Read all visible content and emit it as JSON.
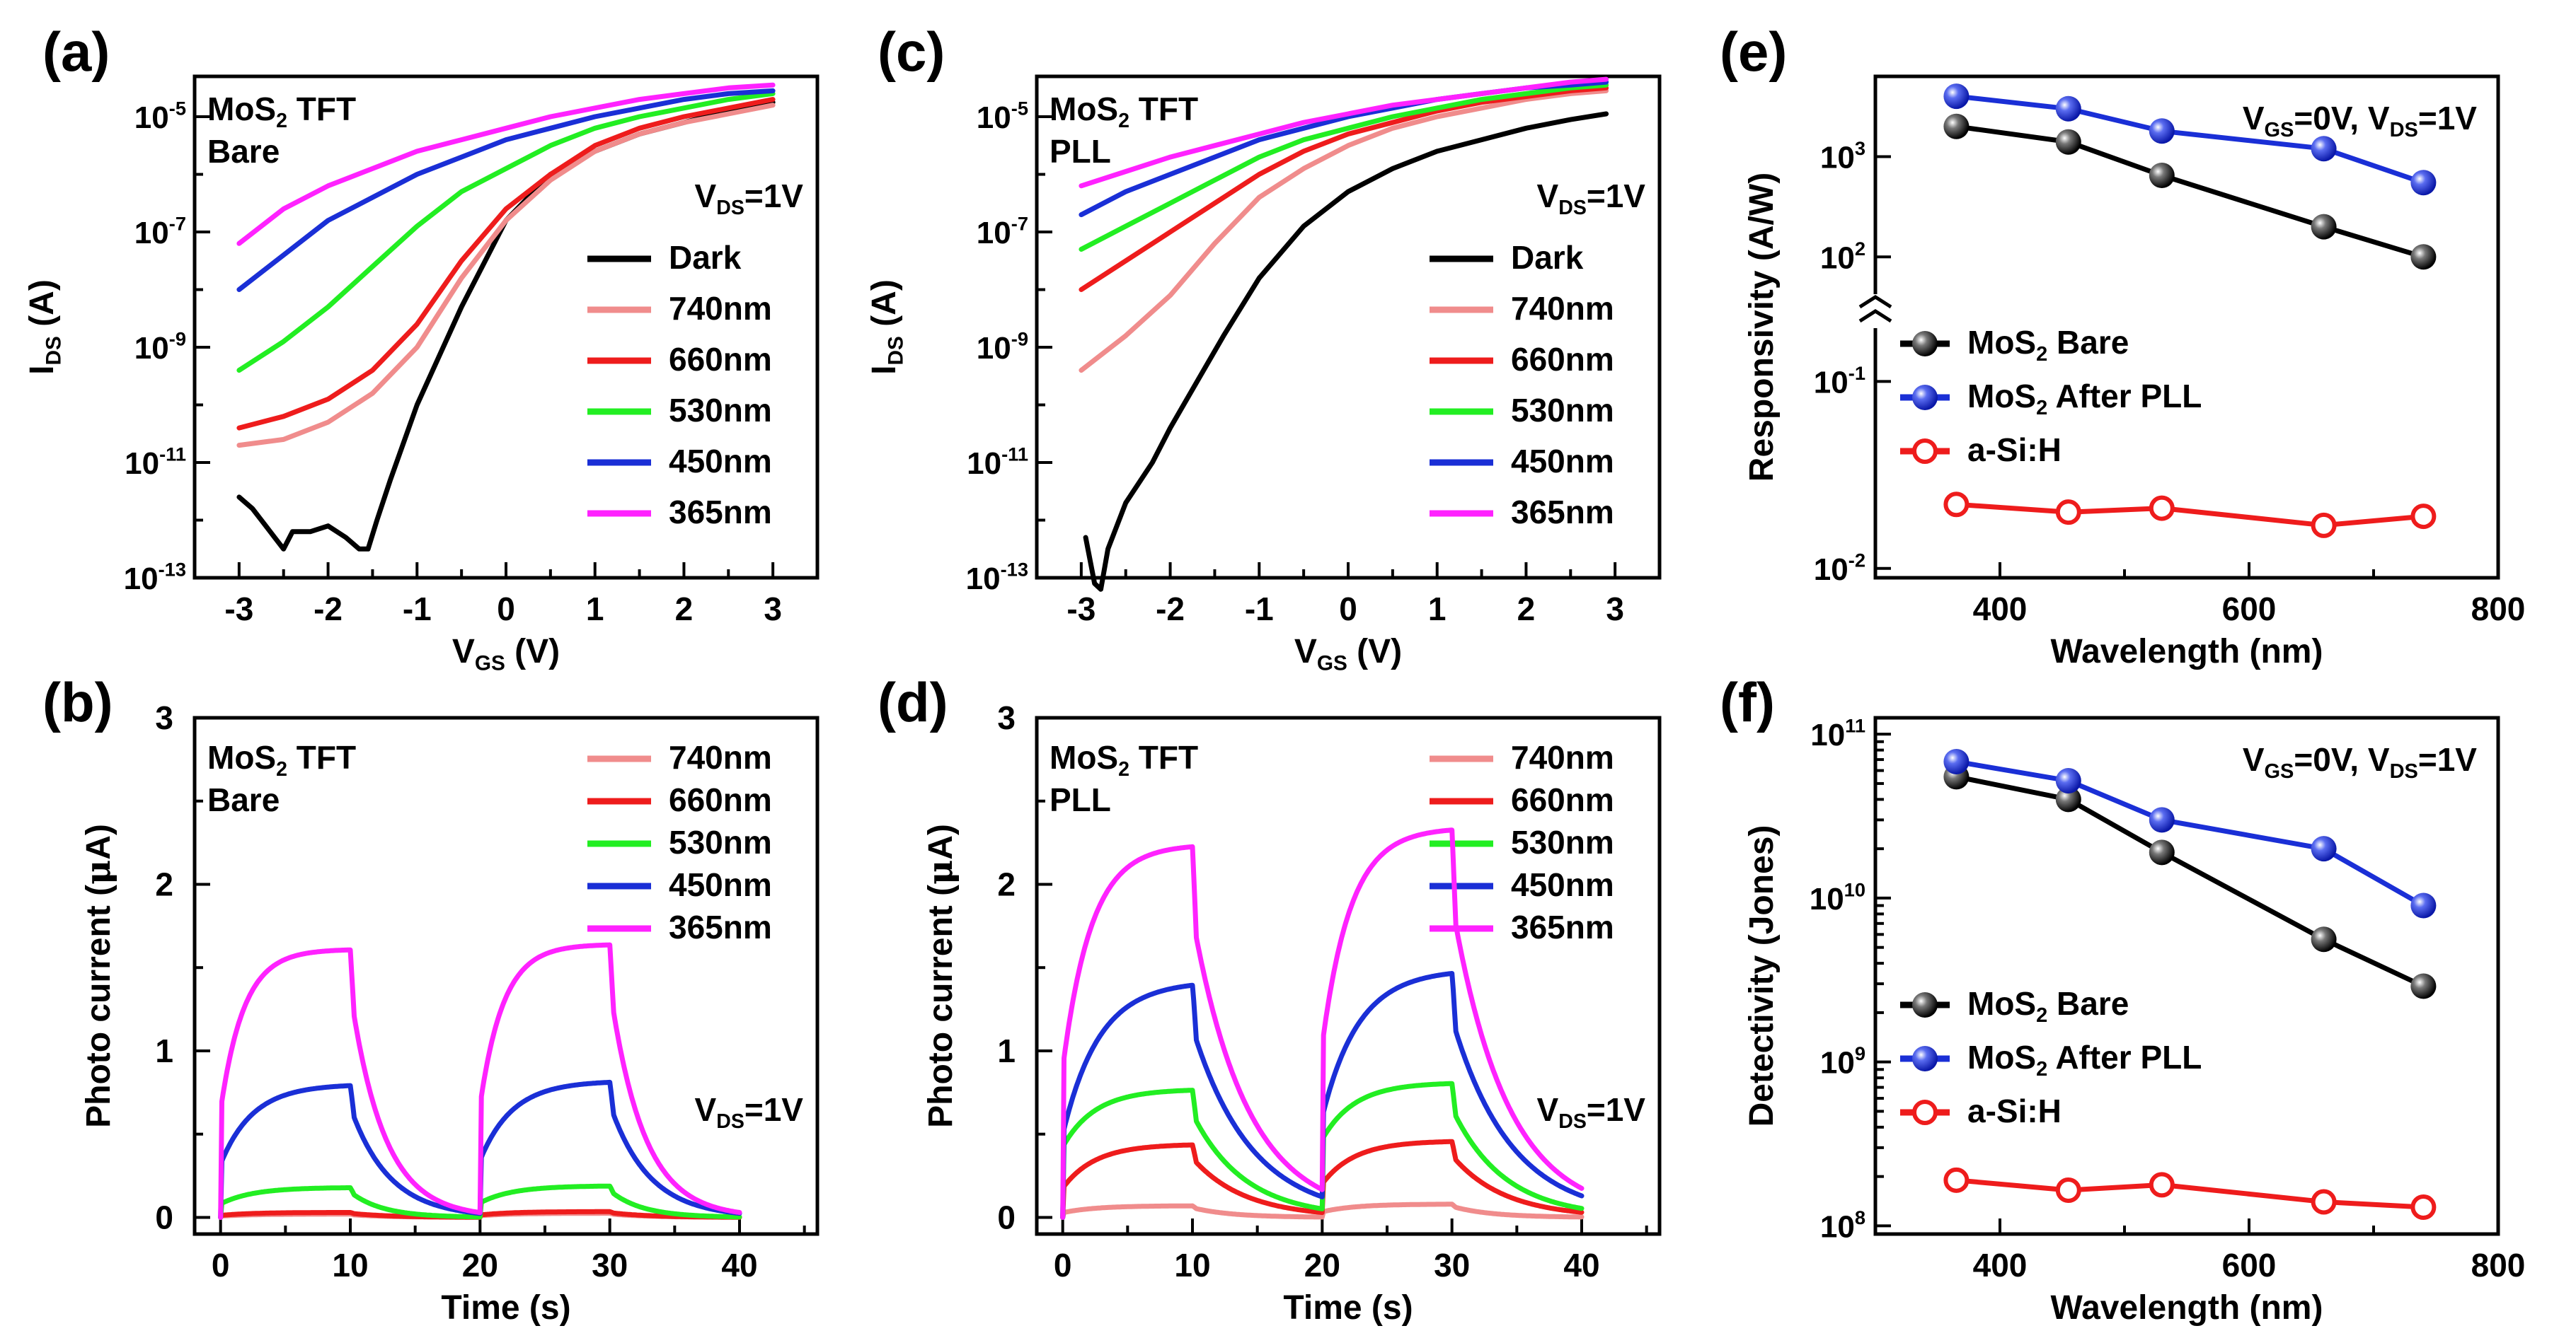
{
  "figure": {
    "colors": {
      "dark": "#000000",
      "nm740": "#f08c8c",
      "nm660": "#ee1c1c",
      "nm530": "#22ee22",
      "nm450": "#1a2fd6",
      "nm365": "#ff22ff",
      "asi": "#ee1c1c"
    }
  },
  "chart_data": [
    {
      "id": "a",
      "panel_label": "(a)",
      "type": "line",
      "yscale": "log",
      "title_line1": "MoS",
      "title_sub": "2",
      "title_rest": " TFT",
      "title_line2": "Bare",
      "condition_main": "V",
      "condition_sub": "DS",
      "condition_rest": "=1V",
      "xlabel": "V",
      "xlabel_sub": "GS",
      "xlabel_rest": " (V)",
      "ylabel": "I",
      "ylabel_sub": "DS",
      "ylabel_rest": " (A)",
      "xlim": [
        -3.5,
        3.5
      ],
      "ylim_exp": [
        -13,
        -4.3
      ],
      "xticks": [
        -3,
        -2,
        -1,
        0,
        1,
        2,
        3
      ],
      "xtick_labels": [
        "-3",
        "-2",
        "-1",
        "0",
        "1",
        "2",
        "3"
      ],
      "yticks_exp": [
        -13,
        -11,
        -9,
        -7,
        -5
      ],
      "ytick_base": "10",
      "ytick_exponents": [
        "-13",
        "-11",
        "-9",
        "-7",
        "-5"
      ],
      "legend_labels": [
        "Dark",
        "740nm",
        "660nm",
        "530nm",
        "450nm",
        "365nm"
      ],
      "series": [
        {
          "name": "Dark",
          "color_key": "dark",
          "x": [
            -3,
            -2.85,
            -2.75,
            -2.6,
            -2.5,
            -2.4,
            -2.2,
            -2.0,
            -1.8,
            -1.65,
            -1.55,
            -1.45,
            -1.3,
            -1.0,
            -0.5,
            0,
            0.5,
            1,
            1.5,
            2,
            2.5,
            3
          ],
          "y_exp": [
            -11.6,
            -11.8,
            -12.0,
            -12.3,
            -12.5,
            -12.2,
            -12.2,
            -12.1,
            -12.3,
            -12.5,
            -12.5,
            -12.0,
            -11.3,
            -10.0,
            -8.3,
            -6.8,
            -6.0,
            -5.6,
            -5.3,
            -5.1,
            -4.9,
            -4.75
          ]
        },
        {
          "name": "740nm",
          "color_key": "nm740",
          "x": [
            -3,
            -2.5,
            -2,
            -1.5,
            -1,
            -0.5,
            0,
            0.5,
            1,
            1.5,
            2,
            2.5,
            3
          ],
          "y_exp": [
            -10.7,
            -10.6,
            -10.3,
            -9.8,
            -9.0,
            -7.8,
            -6.8,
            -6.1,
            -5.6,
            -5.3,
            -5.1,
            -4.95,
            -4.8
          ]
        },
        {
          "name": "660nm",
          "color_key": "nm660",
          "x": [
            -3,
            -2.5,
            -2,
            -1.5,
            -1,
            -0.5,
            0,
            0.5,
            1,
            1.5,
            2,
            2.5,
            3
          ],
          "y_exp": [
            -10.4,
            -10.2,
            -9.9,
            -9.4,
            -8.6,
            -7.5,
            -6.6,
            -6.0,
            -5.5,
            -5.2,
            -5.0,
            -4.85,
            -4.7
          ]
        },
        {
          "name": "530nm",
          "color_key": "nm530",
          "x": [
            -3,
            -2.5,
            -2,
            -1.5,
            -1,
            -0.5,
            0,
            0.5,
            1,
            1.5,
            2,
            2.5,
            3
          ],
          "y_exp": [
            -9.4,
            -8.9,
            -8.3,
            -7.6,
            -6.9,
            -6.3,
            -5.9,
            -5.5,
            -5.2,
            -5.0,
            -4.85,
            -4.7,
            -4.6
          ]
        },
        {
          "name": "450nm",
          "color_key": "nm450",
          "x": [
            -3,
            -2.5,
            -2,
            -1.5,
            -1,
            -0.5,
            0,
            0.5,
            1,
            1.5,
            2,
            2.5,
            3
          ],
          "y_exp": [
            -8.0,
            -7.4,
            -6.8,
            -6.4,
            -6.0,
            -5.7,
            -5.4,
            -5.2,
            -5.0,
            -4.85,
            -4.7,
            -4.6,
            -4.55
          ]
        },
        {
          "name": "365nm",
          "color_key": "nm365",
          "x": [
            -3,
            -2.5,
            -2,
            -1.5,
            -1,
            -0.5,
            0,
            0.5,
            1,
            1.5,
            2,
            2.5,
            3
          ],
          "y_exp": [
            -7.2,
            -6.6,
            -6.2,
            -5.9,
            -5.6,
            -5.4,
            -5.2,
            -5.0,
            -4.85,
            -4.7,
            -4.6,
            -4.5,
            -4.45
          ]
        }
      ]
    },
    {
      "id": "b",
      "panel_label": "(b)",
      "type": "line",
      "yscale": "linear",
      "title_line1": "MoS",
      "title_sub": "2",
      "title_rest": " TFT",
      "title_line2": "Bare",
      "condition_main": "V",
      "condition_sub": "DS",
      "condition_rest": "=1V",
      "xlabel": "Time (s)",
      "ylabel": "Photo current (",
      "ylabel_mu": "μ",
      "ylabel_rest": "A)",
      "xlim": [
        -2,
        46
      ],
      "ylim": [
        -0.1,
        3
      ],
      "xticks": [
        0,
        10,
        20,
        30,
        40
      ],
      "xtick_labels": [
        "0",
        "10",
        "20",
        "30",
        "40"
      ],
      "yticks": [
        0,
        1,
        2,
        3
      ],
      "ytick_labels": [
        "0",
        "1",
        "2",
        "3"
      ],
      "legend_labels": [
        "740nm",
        "660nm",
        "530nm",
        "450nm",
        "365nm"
      ],
      "pulse": {
        "on_start": [
          0,
          20
        ],
        "on_end": [
          10,
          30
        ],
        "end": 40
      },
      "series": [
        {
          "name": "740nm",
          "color_key": "nm740",
          "amp": [
            0.02,
            0.025
          ],
          "jump": 0.4,
          "tau_rise": 2.5,
          "tau_decay": 3.0
        },
        {
          "name": "660nm",
          "color_key": "nm660",
          "amp": [
            0.03,
            0.035
          ],
          "jump": 0.4,
          "tau_rise": 2.5,
          "tau_decay": 3.0
        },
        {
          "name": "530nm",
          "color_key": "nm530",
          "amp": [
            0.18,
            0.19
          ],
          "jump": 0.45,
          "tau_rise": 2.5,
          "tau_decay": 2.5
        },
        {
          "name": "450nm",
          "color_key": "nm450",
          "amp": [
            0.8,
            0.82
          ],
          "jump": 0.4,
          "tau_rise": 2.5,
          "tau_decay": 3.0
        },
        {
          "name": "365nm",
          "color_key": "nm365",
          "amp": [
            1.61,
            1.64
          ],
          "jump": 0.4,
          "tau_rise": 1.8,
          "tau_decay": 2.6
        }
      ]
    },
    {
      "id": "c",
      "panel_label": "(c)",
      "type": "line",
      "yscale": "log",
      "title_line1": "MoS",
      "title_sub": "2",
      "title_rest": " TFT",
      "title_line2": "PLL",
      "condition_main": "V",
      "condition_sub": "DS",
      "condition_rest": "=1V",
      "xlabel": "V",
      "xlabel_sub": "GS",
      "xlabel_rest": " (V)",
      "ylabel": "I",
      "ylabel_sub": "DS",
      "ylabel_rest": " (A)",
      "xlim": [
        -3.5,
        3.5
      ],
      "ylim_exp": [
        -13,
        -4.3
      ],
      "xticks": [
        -3,
        -2,
        -1,
        0,
        1,
        2,
        3
      ],
      "xtick_labels": [
        "-3",
        "-2",
        "-1",
        "0",
        "1",
        "2",
        "3"
      ],
      "yticks_exp": [
        -13,
        -11,
        -9,
        -7,
        -5
      ],
      "ytick_base": "10",
      "ytick_exponents": [
        "-13",
        "-11",
        "-9",
        "-7",
        "-5"
      ],
      "legend_labels": [
        "Dark",
        "740nm",
        "660nm",
        "530nm",
        "450nm",
        "365nm"
      ],
      "series": [
        {
          "name": "Dark",
          "color_key": "dark",
          "x": [
            -2.95,
            -2.85,
            -2.78,
            -2.7,
            -2.5,
            -2.2,
            -2.0,
            -1.7,
            -1.4,
            -1.0,
            -0.5,
            0,
            0.5,
            1,
            1.5,
            2,
            2.5,
            2.9
          ],
          "y_exp": [
            -12.3,
            -13.1,
            -13.2,
            -12.5,
            -11.7,
            -11.0,
            -10.4,
            -9.6,
            -8.8,
            -7.8,
            -6.9,
            -6.3,
            -5.9,
            -5.6,
            -5.4,
            -5.2,
            -5.05,
            -4.95
          ]
        },
        {
          "name": "740nm",
          "color_key": "nm740",
          "x": [
            -3,
            -2.5,
            -2,
            -1.5,
            -1,
            -0.5,
            0,
            0.5,
            1,
            1.5,
            2,
            2.5,
            2.9
          ],
          "y_exp": [
            -9.4,
            -8.8,
            -8.1,
            -7.2,
            -6.4,
            -5.9,
            -5.5,
            -5.2,
            -5.0,
            -4.85,
            -4.7,
            -4.6,
            -4.55
          ]
        },
        {
          "name": "660nm",
          "color_key": "nm660",
          "x": [
            -3,
            -2.5,
            -2,
            -1.5,
            -1,
            -0.5,
            0,
            0.5,
            1,
            1.5,
            2,
            2.5,
            2.9
          ],
          "y_exp": [
            -8.0,
            -7.5,
            -7.0,
            -6.5,
            -6.0,
            -5.6,
            -5.3,
            -5.1,
            -4.9,
            -4.75,
            -4.65,
            -4.55,
            -4.5
          ]
        },
        {
          "name": "530nm",
          "color_key": "nm530",
          "x": [
            -3,
            -2.5,
            -2,
            -1.5,
            -1,
            -0.5,
            0,
            0.5,
            1,
            1.5,
            2,
            2.5,
            2.9
          ],
          "y_exp": [
            -7.3,
            -6.9,
            -6.5,
            -6.1,
            -5.7,
            -5.4,
            -5.2,
            -5.0,
            -4.85,
            -4.7,
            -4.6,
            -4.5,
            -4.45
          ]
        },
        {
          "name": "450nm",
          "color_key": "nm450",
          "x": [
            -3,
            -2.5,
            -2,
            -1.5,
            -1,
            -0.5,
            0,
            0.5,
            1,
            1.5,
            2,
            2.5,
            2.9
          ],
          "y_exp": [
            -6.7,
            -6.3,
            -6.0,
            -5.7,
            -5.4,
            -5.2,
            -5.0,
            -4.85,
            -4.7,
            -4.6,
            -4.5,
            -4.45,
            -4.4
          ]
        },
        {
          "name": "365nm",
          "color_key": "nm365",
          "x": [
            -3,
            -2.5,
            -2,
            -1.5,
            -1,
            -0.5,
            0,
            0.5,
            1,
            1.5,
            2,
            2.5,
            2.9
          ],
          "y_exp": [
            -6.2,
            -5.95,
            -5.7,
            -5.5,
            -5.3,
            -5.1,
            -4.95,
            -4.8,
            -4.7,
            -4.6,
            -4.5,
            -4.4,
            -4.35
          ]
        }
      ]
    },
    {
      "id": "d",
      "panel_label": "(d)",
      "type": "line",
      "yscale": "linear",
      "title_line1": "MoS",
      "title_sub": "2",
      "title_rest": " TFT",
      "title_line2": "PLL",
      "condition_main": "V",
      "condition_sub": "DS",
      "condition_rest": "=1V",
      "xlabel": "Time (s)",
      "ylabel": "Photo current (",
      "ylabel_mu": "μ",
      "ylabel_rest": "A)",
      "xlim": [
        -2,
        46
      ],
      "ylim": [
        -0.1,
        3
      ],
      "xticks": [
        0,
        10,
        20,
        30,
        40
      ],
      "xtick_labels": [
        "0",
        "10",
        "20",
        "30",
        "40"
      ],
      "yticks": [
        0,
        1,
        2,
        3
      ],
      "ytick_labels": [
        "0",
        "1",
        "2",
        "3"
      ],
      "legend_labels": [
        "740nm",
        "660nm",
        "530nm",
        "450nm",
        "365nm"
      ],
      "pulse": {
        "on_start": [
          0,
          20
        ],
        "on_end": [
          10,
          30
        ],
        "end": 40
      },
      "series": [
        {
          "name": "740nm",
          "color_key": "nm740",
          "amp": [
            0.07,
            0.08
          ],
          "jump": 0.4,
          "tau_rise": 2.5,
          "tau_decay": 3.0
        },
        {
          "name": "660nm",
          "color_key": "nm660",
          "amp": [
            0.44,
            0.46
          ],
          "jump": 0.4,
          "tau_rise": 2.5,
          "tau_decay": 4.0
        },
        {
          "name": "530nm",
          "color_key": "nm530",
          "amp": [
            0.77,
            0.81
          ],
          "jump": 0.55,
          "tau_rise": 2.5,
          "tau_decay": 4.0
        },
        {
          "name": "450nm",
          "color_key": "nm450",
          "amp": [
            1.42,
            1.49
          ],
          "jump": 0.35,
          "tau_rise": 2.8,
          "tau_decay": 4.5
        },
        {
          "name": "365nm",
          "color_key": "nm365",
          "amp": [
            2.24,
            2.34
          ],
          "jump": 0.4,
          "tau_rise": 2.2,
          "tau_decay": 4.2
        }
      ]
    },
    {
      "id": "e",
      "panel_label": "(e)",
      "type": "scatter",
      "yscale": "broken-log",
      "condition_a": "V",
      "condition_a_sub": "GS",
      "condition_a_rest": "=0V, V",
      "condition_b_sub": "DS",
      "condition_b_rest": "=1V",
      "xlabel": "Wavelength (nm)",
      "ylabel": "Responsivity (A/W)",
      "xlim": [
        300,
        800
      ],
      "xticks": [
        400,
        600,
        800
      ],
      "xtick_labels": [
        "400",
        "600",
        "800"
      ],
      "ytick_base": "10",
      "ytick_exponents": [
        "-2",
        "-1",
        "2",
        "3"
      ],
      "legend_labels": [
        {
          "main": "MoS",
          "sub": "2",
          "rest": " Bare"
        },
        {
          "main": "MoS",
          "sub": "2",
          "rest": " After PLL"
        },
        {
          "main": "a-Si:H",
          "sub": "",
          "rest": ""
        }
      ],
      "series": [
        {
          "name": "MoS2 Bare",
          "color_key": "dark",
          "marker": "filled",
          "x": [
            365,
            455,
            530,
            660,
            740
          ],
          "y": [
            2000,
            1400,
            650,
            200,
            100
          ]
        },
        {
          "name": "MoS2 After PLL",
          "color_key": "nm450",
          "marker": "filled",
          "x": [
            365,
            455,
            530,
            660,
            740
          ],
          "y": [
            4000,
            3000,
            1800,
            1200,
            550
          ]
        },
        {
          "name": "a-Si:H",
          "color_key": "asi",
          "marker": "hollow",
          "x": [
            365,
            455,
            530,
            660,
            740
          ],
          "y": [
            0.022,
            0.02,
            0.021,
            0.017,
            0.019
          ]
        }
      ]
    },
    {
      "id": "f",
      "panel_label": "(f)",
      "type": "scatter",
      "yscale": "log",
      "condition_a": "V",
      "condition_a_sub": "GS",
      "condition_a_rest": "=0V, V",
      "condition_b_sub": "DS",
      "condition_b_rest": "=1V",
      "xlabel": "Wavelength (nm)",
      "ylabel": "Detectivity (Jones)",
      "xlim": [
        300,
        800
      ],
      "ylim_exp": [
        7.95,
        11.1
      ],
      "xticks": [
        400,
        600,
        800
      ],
      "xtick_labels": [
        "400",
        "600",
        "800"
      ],
      "yticks_exp": [
        8,
        9,
        10,
        11
      ],
      "ytick_base": "10",
      "ytick_exponents": [
        "8",
        "9",
        "10",
        "11"
      ],
      "legend_labels": [
        {
          "main": "MoS",
          "sub": "2",
          "rest": " Bare"
        },
        {
          "main": "MoS",
          "sub": "2",
          "rest": " After PLL"
        },
        {
          "main": "a-Si:H",
          "sub": "",
          "rest": ""
        }
      ],
      "series": [
        {
          "name": "MoS2 Bare",
          "color_key": "dark",
          "marker": "filled",
          "x": [
            365,
            455,
            530,
            660,
            740
          ],
          "y": [
            55000000000,
            40000000000,
            19000000000,
            5600000000,
            2900000000
          ]
        },
        {
          "name": "MoS2 After PLL",
          "color_key": "nm450",
          "marker": "filled",
          "x": [
            365,
            455,
            530,
            660,
            740
          ],
          "y": [
            68000000000,
            52000000000,
            30000000000,
            20000000000,
            9000000000
          ]
        },
        {
          "name": "a-Si:H",
          "color_key": "asi",
          "marker": "hollow",
          "x": [
            365,
            455,
            530,
            660,
            740
          ],
          "y": [
            190000000,
            165000000,
            178000000,
            140000000,
            130000000
          ]
        }
      ]
    }
  ]
}
